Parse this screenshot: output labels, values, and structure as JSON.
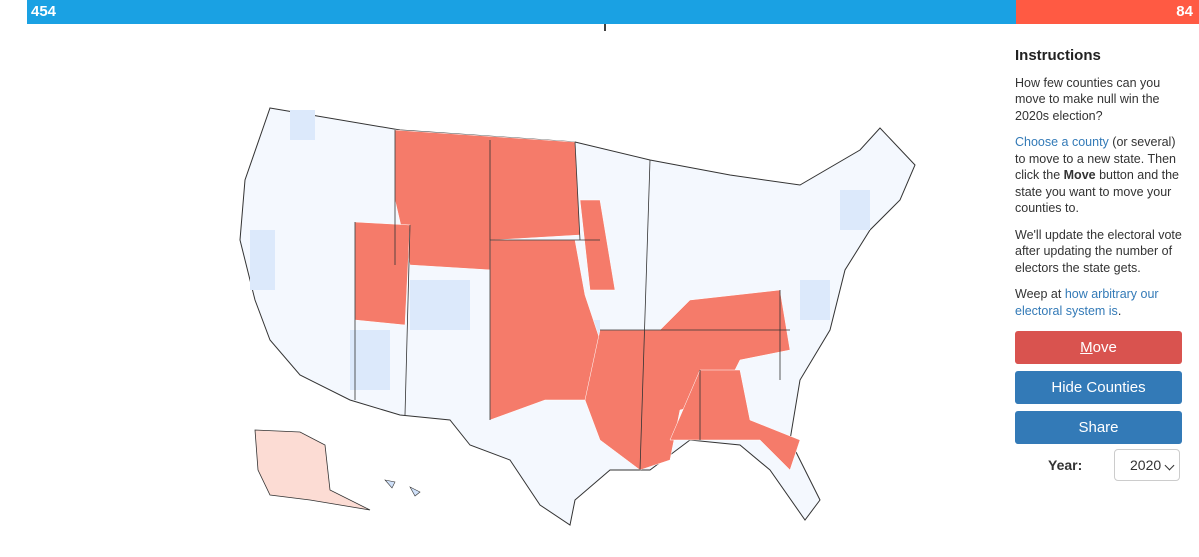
{
  "score": {
    "blue": {
      "value": 454,
      "color": "#1aa1e3"
    },
    "red": {
      "value": 84,
      "color": "#ff5a43"
    }
  },
  "instructions": {
    "title": "Instructions",
    "paragraphs": [
      [
        {
          "text": "How few counties can you move to make null win the 2020s election?",
          "style": "plain"
        }
      ],
      [
        {
          "text": "Choose a county",
          "style": "link"
        },
        {
          "text": " (or several) to move to a new state. Then click the ",
          "style": "plain"
        },
        {
          "text": "Move",
          "style": "bold"
        },
        {
          "text": " button and the state you want to move your counties to.",
          "style": "plain"
        }
      ],
      [
        {
          "text": "We'll update the electoral vote after updating the number of electors the state gets.",
          "style": "plain"
        }
      ],
      [
        {
          "text": "Weep at ",
          "style": "plain"
        },
        {
          "text": "how arbitrary our electoral system is",
          "style": "link"
        },
        {
          "text": ".",
          "style": "plain"
        }
      ]
    ]
  },
  "buttons": [
    {
      "label": "Move",
      "color": "#d9534f"
    },
    {
      "label": "Hide Counties",
      "color": "#337ab7"
    },
    {
      "label": "Share",
      "color": "#337ab7"
    }
  ],
  "year": {
    "label": "Year:",
    "selected": "2020"
  }
}
